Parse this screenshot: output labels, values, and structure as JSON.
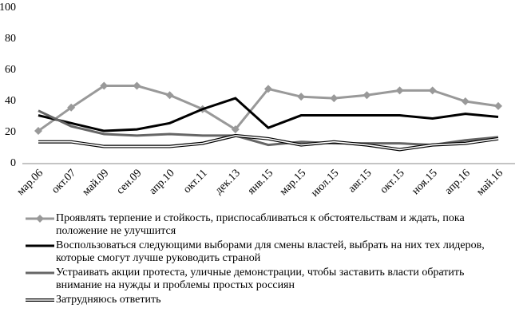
{
  "chart_data": {
    "type": "line",
    "categories": [
      "мар.06",
      "окт.07",
      "май.09",
      "сен.09",
      "апр.10",
      "окт.11",
      "дек.13",
      "янв.15",
      "мар.15",
      "июл.15",
      "авг.15",
      "окт.15",
      "ноя.15",
      "апр.16",
      "май.16"
    ],
    "series": [
      {
        "name": "Проявлять терпение и стойкость, приспосабливаться к обстоятельствам и ждать, пока положение не улучшится",
        "color": "#999999",
        "marker": "diamond",
        "values": [
          21,
          36,
          50,
          50,
          44,
          35,
          22,
          48,
          43,
          42,
          44,
          47,
          47,
          40,
          37
        ]
      },
      {
        "name": "Воспользоваться следующими выборами для смены властей, выбрать на них тех лидеров, которые смогут лучше руководить страной",
        "color": "#000000",
        "values": [
          31,
          26,
          21,
          22,
          26,
          35,
          42,
          23,
          31,
          31,
          31,
          31,
          29,
          32,
          30
        ]
      },
      {
        "name": "Устраивать акции протеста, уличные демонстрации, чтобы заставить власти обратить внимание на нужды и проблемы простых россиян",
        "color": "#666666",
        "values": [
          34,
          24,
          19,
          18,
          19,
          18,
          18,
          12,
          14,
          13,
          13,
          13,
          12,
          15,
          17
        ]
      },
      {
        "name": "Затрудняюсь ответить",
        "color": "#ffffff",
        "line_style": "double",
        "values": [
          14,
          14,
          11,
          11,
          11,
          13,
          18,
          16,
          12,
          14,
          12,
          9,
          12,
          13,
          16
        ]
      }
    ],
    "ylim": [
      0,
      100
    ],
    "yticks": [
      0,
      20,
      40,
      60,
      80,
      100
    ],
    "grid": false,
    "legend": "bottom"
  }
}
